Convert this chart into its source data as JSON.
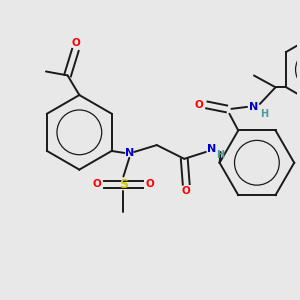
{
  "bg_color": "#e8e8e8",
  "bond_color": "#1a1a1a",
  "atom_colors": {
    "O": "#ff0000",
    "N": "#0000cc",
    "S": "#cccc00",
    "H": "#4a9a9a",
    "C": "#1a1a1a"
  },
  "figsize": [
    3.0,
    3.0
  ],
  "dpi": 100
}
